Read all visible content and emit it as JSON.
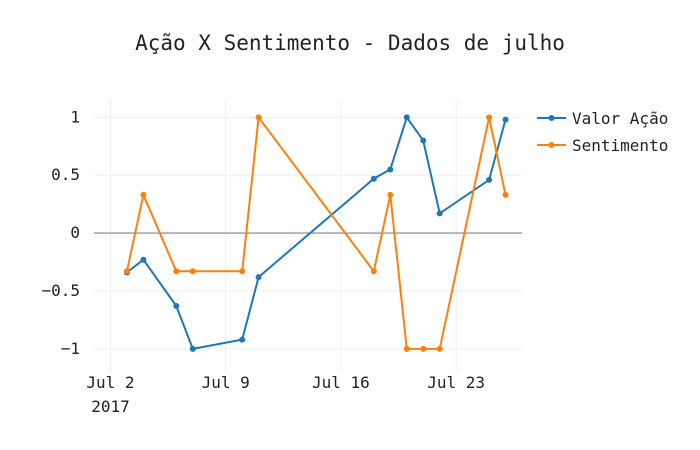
{
  "chart_data": {
    "type": "line",
    "title": "Ação X Sentimento - Dados de julho",
    "xlabel": "",
    "ylabel": "",
    "x_ticks": [
      {
        "date": "2017-07-02",
        "label": "Jul 2",
        "sublabel": "2017"
      },
      {
        "date": "2017-07-09",
        "label": "Jul 9",
        "sublabel": ""
      },
      {
        "date": "2017-07-16",
        "label": "Jul 16",
        "sublabel": ""
      },
      {
        "date": "2017-07-23",
        "label": "Jul 23",
        "sublabel": ""
      }
    ],
    "x_range": [
      "2017-07-01",
      "2017-07-27"
    ],
    "y_ticks": [
      {
        "value": 1,
        "label": "1"
      },
      {
        "value": 0.5,
        "label": "0.5"
      },
      {
        "value": 0,
        "label": "0"
      },
      {
        "value": -0.5,
        "label": "−0.5"
      },
      {
        "value": -1,
        "label": "−1"
      }
    ],
    "ylim": [
      -1.2,
      1.15
    ],
    "grid": true,
    "legend_position": "top-right",
    "series": [
      {
        "name": "Valor Ação",
        "color": "#1f77b4",
        "points": [
          {
            "x": "2017-07-03",
            "y": -0.34
          },
          {
            "x": "2017-07-04",
            "y": -0.23
          },
          {
            "x": "2017-07-06",
            "y": -0.63
          },
          {
            "x": "2017-07-07",
            "y": -1.0
          },
          {
            "x": "2017-07-10",
            "y": -0.92
          },
          {
            "x": "2017-07-11",
            "y": -0.38
          },
          {
            "x": "2017-07-18",
            "y": 0.47
          },
          {
            "x": "2017-07-19",
            "y": 0.55
          },
          {
            "x": "2017-07-20",
            "y": 1.0
          },
          {
            "x": "2017-07-21",
            "y": 0.8
          },
          {
            "x": "2017-07-22",
            "y": 0.17
          },
          {
            "x": "2017-07-25",
            "y": 0.46
          },
          {
            "x": "2017-07-26",
            "y": 0.98
          }
        ]
      },
      {
        "name": "Sentimento",
        "color": "#ff7f0e",
        "points": [
          {
            "x": "2017-07-03",
            "y": -0.33
          },
          {
            "x": "2017-07-04",
            "y": 0.33
          },
          {
            "x": "2017-07-06",
            "y": -0.33
          },
          {
            "x": "2017-07-07",
            "y": -0.33
          },
          {
            "x": "2017-07-10",
            "y": -0.33
          },
          {
            "x": "2017-07-11",
            "y": 1.0
          },
          {
            "x": "2017-07-18",
            "y": -0.33
          },
          {
            "x": "2017-07-19",
            "y": 0.33
          },
          {
            "x": "2017-07-20",
            "y": -1.0
          },
          {
            "x": "2017-07-21",
            "y": -1.0
          },
          {
            "x": "2017-07-22",
            "y": -1.0
          },
          {
            "x": "2017-07-25",
            "y": 1.0
          },
          {
            "x": "2017-07-26",
            "y": 0.33
          }
        ]
      }
    ]
  }
}
